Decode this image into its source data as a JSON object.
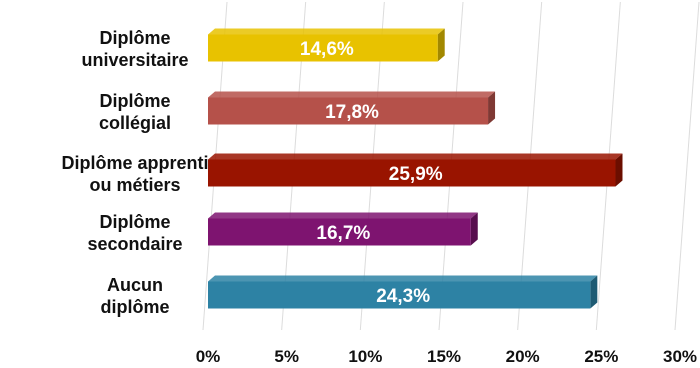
{
  "chart_data": {
    "type": "bar",
    "orientation": "horizontal",
    "categories": [
      [
        "Diplôme",
        "universitaire"
      ],
      [
        "Diplôme",
        "collégial"
      ],
      [
        "Diplôme apprenti",
        "ou métiers"
      ],
      [
        "Diplôme",
        "secondaire"
      ],
      [
        "Aucun",
        "diplôme"
      ]
    ],
    "values": [
      14.6,
      17.8,
      25.9,
      16.7,
      24.3
    ],
    "data_labels": [
      "14,6%",
      "17,8%",
      "25,9%",
      "16,7%",
      "24,3%"
    ],
    "colors": [
      "#e8c200",
      "#b5514a",
      "#991400",
      "#7e1470",
      "#2d82a4"
    ],
    "xlim": [
      0,
      30
    ],
    "x_ticks": [
      0,
      5,
      10,
      15,
      20,
      25,
      30
    ],
    "x_tick_labels": [
      "0%",
      "5%",
      "10%",
      "15%",
      "20%",
      "25%",
      "30%"
    ],
    "grid": true,
    "legend": "none",
    "style": "3d-bars"
  }
}
